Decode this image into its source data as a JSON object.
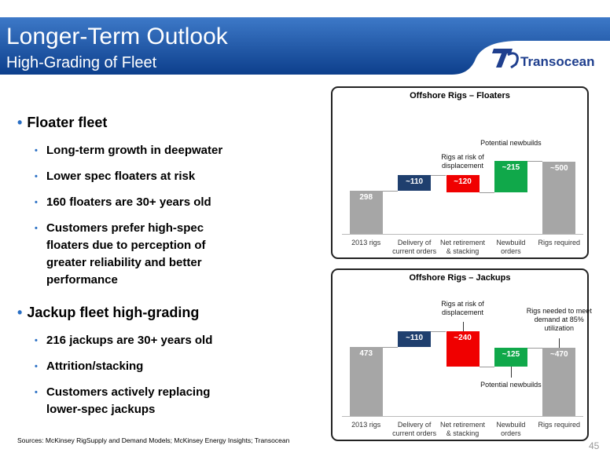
{
  "header": {
    "title": "Longer-Term Outlook",
    "subtitle": "High-Grading of Fleet",
    "logo": "Transocean"
  },
  "bullets": [
    {
      "text": "Floater fleet",
      "items": [
        "Long-term growth in deepwater",
        "Lower spec floaters at risk",
        "160 floaters are 30+ years old",
        "Customers prefer high-spec floaters  due to perception of greater reliability and better performance"
      ]
    },
    {
      "text": "Jackup fleet high-grading",
      "items": [
        "216 jackups are 30+ years old",
        "Attrition/stacking",
        "Customers actively replacing lower-spec jackups"
      ]
    }
  ],
  "sources": "Sources: McKinsey RigSupply and Demand Models;  McKinsey Energy Insights; Transocean",
  "page_number": 45,
  "chart_data": [
    {
      "type": "waterfall",
      "title": "Offshore Rigs – Floaters",
      "categories": [
        "2013 rigs",
        "Delivery of current orders",
        "Net retirement & stacking",
        "Newbuild orders",
        "Rigs required"
      ],
      "values": [
        298,
        110,
        -120,
        215,
        500
      ],
      "value_labels": [
        "298",
        "~110",
        "~120",
        "~215",
        "~500"
      ],
      "colors": [
        "#a6a6a6",
        "#1f3f6e",
        "#f00000",
        "#10a84a",
        "#a6a6a6"
      ],
      "annotations": [
        "Rigs at risk of displacement",
        "Potential newbuilds"
      ]
    },
    {
      "type": "waterfall",
      "title": "Offshore Rigs – Jackups",
      "categories": [
        "2013 rigs",
        "Delivery of current orders",
        "Net retirement & stacking",
        "Newbuild orders",
        "Rigs required"
      ],
      "values": [
        473,
        110,
        -240,
        125,
        470
      ],
      "value_labels": [
        "473",
        "~110",
        "~240",
        "~125",
        "~470"
      ],
      "colors": [
        "#a6a6a6",
        "#1f3f6e",
        "#f00000",
        "#10a84a",
        "#a6a6a6"
      ],
      "annotations": [
        "Rigs at risk of displacement",
        "Potential newbuilds",
        "Rigs needed to meet demand at 85% utilization"
      ]
    }
  ]
}
